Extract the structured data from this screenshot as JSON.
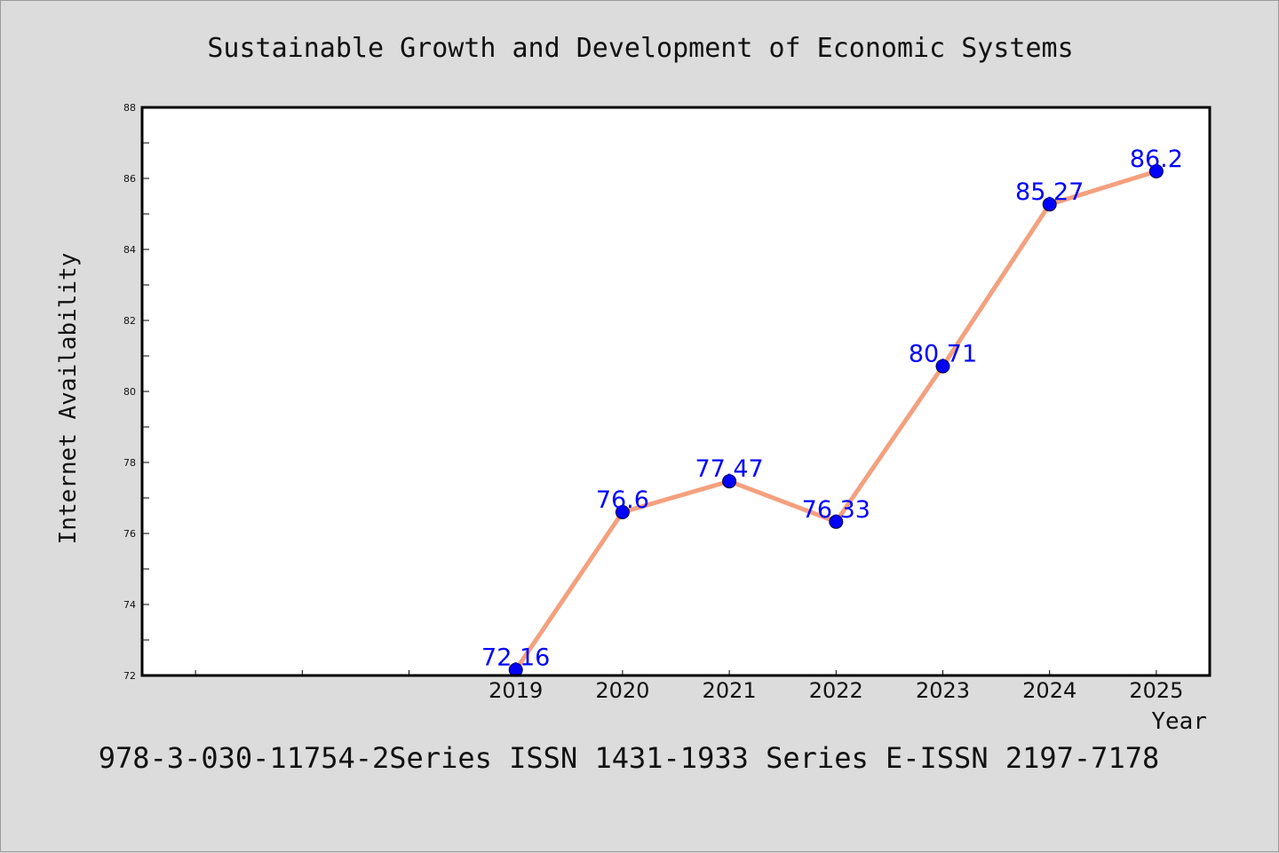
{
  "chart_data": {
    "type": "line",
    "title": "Sustainable Growth and Development of Economic Systems",
    "xlabel": "Year",
    "ylabel": "Internet Availability",
    "categories": [
      "2019",
      "2020",
      "2021",
      "2022",
      "2023",
      "2024",
      "2025"
    ],
    "series": [
      {
        "values": [
          72.16,
          76.6,
          77.47,
          76.33,
          80.71,
          85.27,
          86.2
        ],
        "data_labels": [
          "72.16",
          "76.6",
          "77.47",
          "76.33",
          "80.71",
          "85.27",
          "86.2"
        ]
      }
    ],
    "ylim": [
      72,
      88
    ],
    "y_ticks": [
      "72",
      "74",
      "76",
      "78",
      "80",
      "82",
      "84",
      "86",
      "88"
    ],
    "x_range": [
      2015.5,
      2025.5
    ],
    "grid": false,
    "legend": "none",
    "line_color": "#f4a07e",
    "marker_color": "#0000ff",
    "label_color": "#0000ff"
  },
  "footer_text": "978-3-030-11754-2Series ISSN 1431-1933 Series E-ISSN 2197-7178"
}
